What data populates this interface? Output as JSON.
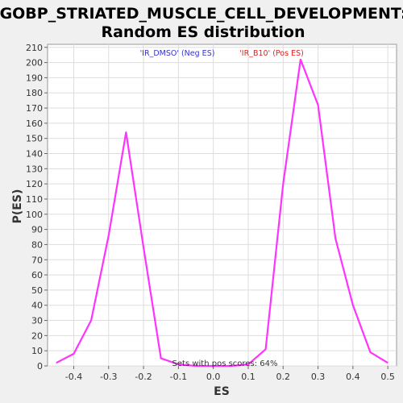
{
  "chart_data": {
    "type": "line",
    "title_line1": "GOBP_STRIATED_MUSCLE_CELL_DEVELOPMENT:",
    "title_line2": "Random ES distribution",
    "xlabel": "ES",
    "ylabel": "P(ES)",
    "xlim": [
      -0.475,
      0.525
    ],
    "ylim": [
      0,
      212
    ],
    "xticks": [
      -0.4,
      -0.3,
      -0.2,
      -0.1,
      0.0,
      0.1,
      0.2,
      0.3,
      0.4,
      0.5
    ],
    "xtick_labels": [
      "-0.4",
      "-0.3",
      "-0.2",
      "-0.1",
      "0.0",
      "0.1",
      "0.2",
      "0.3",
      "0.4",
      "0.5"
    ],
    "yticks": [
      0,
      10,
      20,
      30,
      40,
      50,
      60,
      70,
      80,
      90,
      100,
      110,
      120,
      130,
      140,
      150,
      160,
      170,
      180,
      190,
      200,
      210
    ],
    "grid": true,
    "line_color": "#ff33ff",
    "neg_legend": {
      "text": "'IR_DMSO' (Neg ES)",
      "color": "#3333cc"
    },
    "pos_legend": {
      "text": "'IR_B10' (Pos ES)",
      "color": "#dd2222"
    },
    "annotation": "Sets with pos scores: 64%",
    "series": [
      {
        "x": [
          -0.45,
          -0.4,
          -0.35,
          -0.3,
          -0.25,
          -0.2,
          -0.15,
          -0.1,
          -0.05,
          0.0,
          0.05,
          0.1,
          0.15,
          0.2,
          0.25,
          0.3,
          0.35,
          0.4,
          0.45,
          0.5
        ],
        "y": [
          2,
          8,
          30,
          86,
          154,
          78,
          5,
          1,
          0,
          0,
          0,
          1,
          11,
          120,
          202,
          172,
          84,
          40,
          9,
          2
        ]
      }
    ]
  }
}
